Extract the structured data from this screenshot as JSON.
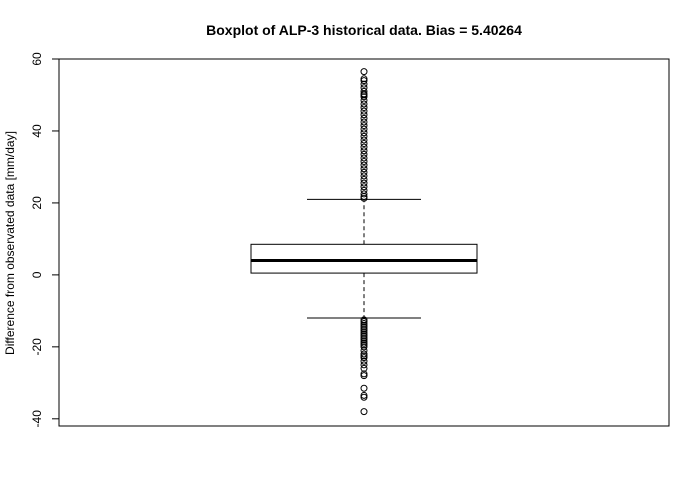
{
  "chart_data": {
    "type": "boxplot",
    "title": "Boxplot of ALP-3 historical data. Bias = 5.40264",
    "xlabel": "",
    "ylabel": "Difference from observated data [mm/day]",
    "ylim": [
      -42,
      60
    ],
    "y_ticks": [
      "-40",
      "-20",
      "0",
      "20",
      "40",
      "60"
    ],
    "grid": false,
    "legend": "none",
    "box": {
      "lower_whisker": -12,
      "q1": 0.5,
      "median": 4,
      "q3": 8.5,
      "upper_whisker": 21
    },
    "outliers": [
      56.5,
      54.5,
      54,
      53,
      52,
      51,
      50.3,
      50,
      49.5,
      48.5,
      47.5,
      46.5,
      45.5,
      44.5,
      43.5,
      42.5,
      41.5,
      40.5,
      39.5,
      38.5,
      37.5,
      36.5,
      35.5,
      34.5,
      33.5,
      32.5,
      31.5,
      30.5,
      29.5,
      28.5,
      27.5,
      26.5,
      25.5,
      24.5,
      23.5,
      22.5,
      21.8,
      21.3,
      -12.5,
      -13,
      -13.5,
      -14,
      -14.5,
      -15,
      -15.5,
      -16,
      -16.5,
      -17,
      -17.5,
      -18,
      -18.5,
      -19,
      -19.5,
      -20,
      -21,
      -22,
      -22.5,
      -23,
      -24,
      -25,
      -26,
      -27.5,
      -28,
      -31.5,
      -33.5,
      -34,
      -38
    ]
  }
}
